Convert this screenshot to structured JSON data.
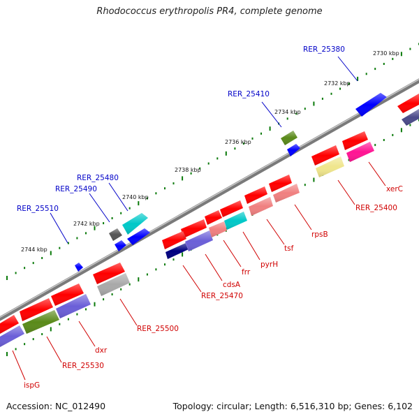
{
  "title": "Rhodococcus erythropolis PR4, complete genome",
  "footer": {
    "accession": "Accession: NC_012490",
    "topology": "Topology: circular; Length: 6,516,310 bp; Genes: 6,102"
  },
  "scale_labels": [
    "2730 kbp",
    "2732 kbp",
    "2734 kbp",
    "2736 kbp",
    "2738 kbp",
    "2740 kbp",
    "2742 kbp",
    "2744 kbp"
  ],
  "top_strand_labels": [
    "RER_25380",
    "RER_25410",
    "RER_25480",
    "RER_25490",
    "RER_25510"
  ],
  "bottom_strand_labels": [
    "xerC",
    "RER_25400",
    "rpsB",
    "tsf",
    "pyrH",
    "frr",
    "cdsA",
    "RER_25470",
    "RER_25500",
    "dxr",
    "RER_25530",
    "ispG"
  ],
  "colors": {
    "backbone": "#8a8a8a",
    "tick": "#0a7a0a",
    "label_top": "#0000c8",
    "label_bottom": "#d00000",
    "gene_red": "#ff0000",
    "gene_blue": "#0000ff",
    "gene_purple": "#6b5fd8",
    "gene_navy": "#000080",
    "gene_olive": "#5a8a1a",
    "gene_cyan": "#00c8c8",
    "gene_salmon": "#f08080",
    "gene_pink": "#ff1493",
    "gene_khaki": "#f0e68c",
    "gene_gray": "#a9a9a9",
    "gene_dimgray": "#555555",
    "gene_slate": "#4b4b8a"
  }
}
